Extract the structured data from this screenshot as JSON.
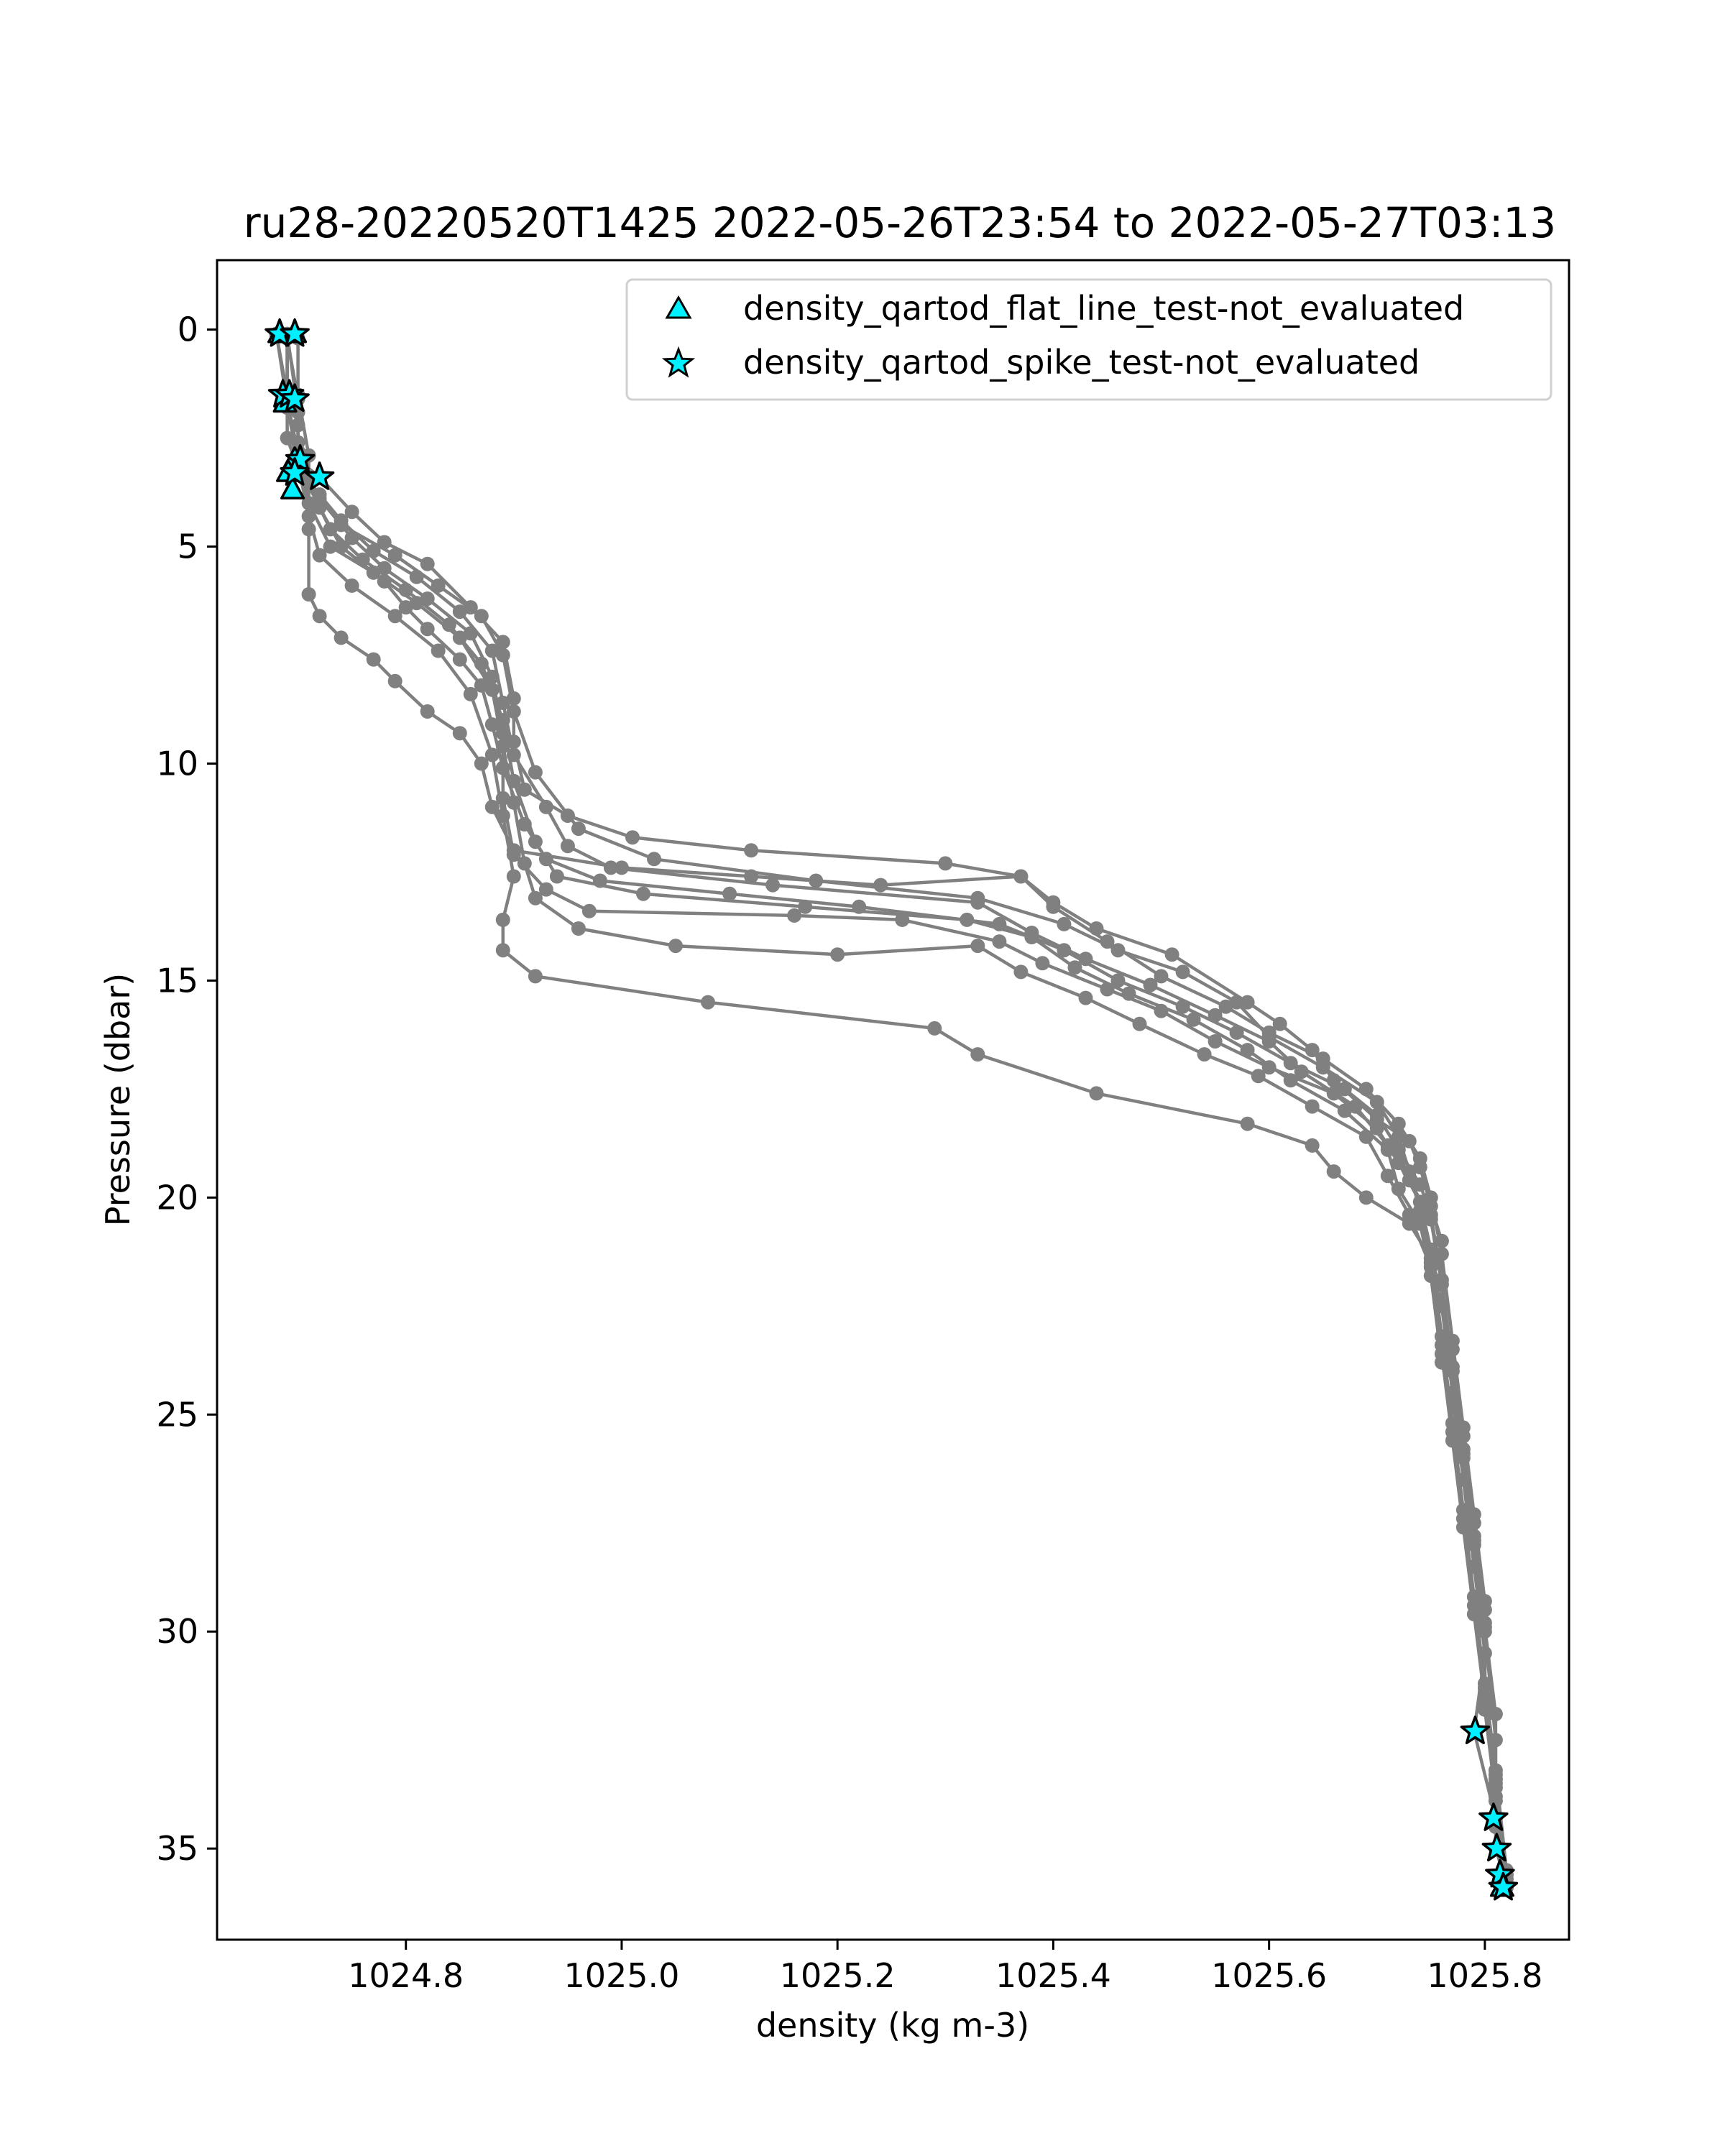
{
  "chart_data": {
    "type": "line",
    "title": "ru28-20220520T1425 2022-05-26T23:54 to 2022-05-27T03:13",
    "xlabel": "density (kg m-3)",
    "ylabel": "Pressure (dbar)",
    "xlim": [
      1024.625,
      1025.878
    ],
    "ylim": [
      37.1,
      -1.6
    ],
    "y_inverted": true,
    "grid": false,
    "legend_position": "top-right",
    "xticks": [
      1024.8,
      1025.0,
      1025.2,
      1025.4,
      1025.6,
      1025.8
    ],
    "xtick_labels": [
      "1024.8",
      "1025.0",
      "1025.2",
      "1025.4",
      "1025.6",
      "1025.8"
    ],
    "yticks": [
      0,
      5,
      10,
      15,
      20,
      25,
      30,
      35
    ],
    "ytick_labels": [
      "0",
      "5",
      "10",
      "15",
      "20",
      "25",
      "30",
      "35"
    ],
    "colors": {
      "profile_line": "#808080",
      "flag_fill": "#00f0ff",
      "flag_edge": "#000000"
    },
    "profiles": [
      [
        [
          1024.69,
          0.1
        ],
        [
          1024.69,
          1.4
        ],
        [
          1024.7,
          2.2
        ],
        [
          1024.7,
          3.0
        ],
        [
          1024.72,
          3.4
        ],
        [
          1024.75,
          4.2
        ],
        [
          1024.78,
          4.9
        ],
        [
          1024.82,
          5.4
        ],
        [
          1024.86,
          6.4
        ],
        [
          1024.89,
          7.2
        ],
        [
          1024.9,
          8.5
        ],
        [
          1024.9,
          9.5
        ],
        [
          1024.91,
          10.6
        ],
        [
          1024.95,
          11.2
        ],
        [
          1025.01,
          11.7
        ],
        [
          1025.12,
          12.0
        ],
        [
          1025.3,
          12.3
        ],
        [
          1025.37,
          12.6
        ],
        [
          1025.4,
          13.2
        ],
        [
          1025.44,
          13.8
        ],
        [
          1025.51,
          14.4
        ],
        [
          1025.58,
          15.5
        ],
        [
          1025.61,
          16.0
        ],
        [
          1025.64,
          16.6
        ],
        [
          1025.66,
          17.3
        ],
        [
          1025.7,
          18.2
        ],
        [
          1025.73,
          18.7
        ],
        [
          1025.74,
          19.3
        ],
        [
          1025.75,
          20.2
        ],
        [
          1025.76,
          21.0
        ],
        [
          1025.76,
          22.5
        ],
        [
          1025.77,
          24.5
        ],
        [
          1025.78,
          26.5
        ],
        [
          1025.79,
          28.5
        ],
        [
          1025.8,
          30.5
        ],
        [
          1025.79,
          32.3
        ],
        [
          1025.81,
          34.3
        ],
        [
          1025.81,
          35.0
        ],
        [
          1025.82,
          35.8
        ]
      ],
      [
        [
          1024.68,
          0.1
        ],
        [
          1024.69,
          1.5
        ],
        [
          1024.69,
          2.5
        ],
        [
          1024.7,
          3.2
        ],
        [
          1024.72,
          3.8
        ],
        [
          1024.74,
          4.5
        ],
        [
          1024.79,
          5.2
        ],
        [
          1024.83,
          5.9
        ],
        [
          1024.87,
          6.6
        ],
        [
          1024.89,
          7.5
        ],
        [
          1024.9,
          8.8
        ],
        [
          1024.92,
          10.2
        ],
        [
          1024.96,
          11.5
        ],
        [
          1025.03,
          12.2
        ],
        [
          1025.18,
          12.7
        ],
        [
          1025.33,
          13.1
        ],
        [
          1025.41,
          13.7
        ],
        [
          1025.46,
          14.3
        ],
        [
          1025.52,
          14.8
        ],
        [
          1025.57,
          15.5
        ],
        [
          1025.6,
          16.3
        ],
        [
          1025.65,
          17.0
        ],
        [
          1025.7,
          17.8
        ],
        [
          1025.72,
          18.6
        ],
        [
          1025.73,
          19.4
        ],
        [
          1025.74,
          20.3
        ],
        [
          1025.75,
          21.5
        ],
        [
          1025.77,
          23.5
        ],
        [
          1025.78,
          25.5
        ],
        [
          1025.79,
          27.5
        ],
        [
          1025.8,
          29.5
        ],
        [
          1025.8,
          31.5
        ],
        [
          1025.81,
          33.5
        ],
        [
          1025.82,
          35.6
        ]
      ],
      [
        [
          1024.69,
          0.2
        ],
        [
          1024.7,
          1.6
        ],
        [
          1024.7,
          2.6
        ],
        [
          1024.71,
          3.5
        ],
        [
          1024.74,
          4.4
        ],
        [
          1024.77,
          5.1
        ],
        [
          1024.81,
          5.7
        ],
        [
          1024.85,
          6.5
        ],
        [
          1024.88,
          7.4
        ],
        [
          1024.89,
          8.6
        ],
        [
          1024.9,
          9.8
        ],
        [
          1024.93,
          11.0
        ],
        [
          1024.95,
          11.9
        ],
        [
          1024.99,
          12.4
        ],
        [
          1025.14,
          12.8
        ],
        [
          1025.33,
          13.2
        ],
        [
          1025.38,
          13.9
        ],
        [
          1025.43,
          14.5
        ],
        [
          1025.49,
          15.1
        ],
        [
          1025.55,
          15.8
        ],
        [
          1025.6,
          16.4
        ],
        [
          1025.63,
          17.1
        ],
        [
          1025.68,
          17.9
        ],
        [
          1025.71,
          18.8
        ],
        [
          1025.73,
          19.6
        ],
        [
          1025.75,
          20.5
        ],
        [
          1025.76,
          22.0
        ],
        [
          1025.77,
          24.0
        ],
        [
          1025.78,
          26.0
        ],
        [
          1025.79,
          28.0
        ],
        [
          1025.8,
          30.0
        ],
        [
          1025.81,
          32.5
        ],
        [
          1025.81,
          34.5
        ],
        [
          1025.82,
          35.9
        ]
      ],
      [
        [
          1024.68,
          0.1
        ],
        [
          1024.69,
          1.7
        ],
        [
          1024.7,
          2.8
        ],
        [
          1024.71,
          3.6
        ],
        [
          1024.73,
          4.6
        ],
        [
          1024.76,
          5.3
        ],
        [
          1024.8,
          6.0
        ],
        [
          1024.84,
          6.8
        ],
        [
          1024.87,
          7.7
        ],
        [
          1024.89,
          9.0
        ],
        [
          1024.9,
          10.4
        ],
        [
          1024.92,
          11.8
        ],
        [
          1024.94,
          12.6
        ],
        [
          1025.02,
          13.0
        ],
        [
          1025.17,
          13.3
        ],
        [
          1025.32,
          13.6
        ],
        [
          1025.38,
          14.0
        ],
        [
          1025.42,
          14.7
        ],
        [
          1025.47,
          15.3
        ],
        [
          1025.53,
          15.9
        ],
        [
          1025.58,
          16.6
        ],
        [
          1025.62,
          17.3
        ],
        [
          1025.67,
          18.0
        ],
        [
          1025.71,
          18.9
        ],
        [
          1025.72,
          19.8
        ],
        [
          1025.74,
          20.6
        ],
        [
          1025.75,
          21.8
        ],
        [
          1025.76,
          23.8
        ],
        [
          1025.78,
          25.8
        ],
        [
          1025.79,
          27.8
        ],
        [
          1025.8,
          29.8
        ],
        [
          1025.8,
          31.8
        ],
        [
          1025.81,
          33.8
        ],
        [
          1025.82,
          35.7
        ]
      ],
      [
        [
          1024.69,
          0.2
        ],
        [
          1024.69,
          1.8
        ],
        [
          1024.7,
          3.0
        ],
        [
          1024.72,
          3.9
        ],
        [
          1024.75,
          4.8
        ],
        [
          1024.78,
          5.5
        ],
        [
          1024.82,
          6.2
        ],
        [
          1024.86,
          7.0
        ],
        [
          1024.88,
          8.0
        ],
        [
          1024.89,
          9.3
        ],
        [
          1024.89,
          10.8
        ],
        [
          1024.9,
          12.1
        ],
        [
          1024.93,
          12.9
        ],
        [
          1024.97,
          13.4
        ],
        [
          1025.16,
          13.5
        ],
        [
          1025.26,
          13.6
        ],
        [
          1025.35,
          14.1
        ],
        [
          1025.39,
          14.6
        ],
        [
          1025.45,
          15.2
        ],
        [
          1025.5,
          15.7
        ],
        [
          1025.55,
          16.4
        ],
        [
          1025.6,
          17.0
        ],
        [
          1025.66,
          17.6
        ],
        [
          1025.7,
          18.4
        ],
        [
          1025.72,
          19.2
        ],
        [
          1025.74,
          20.1
        ],
        [
          1025.75,
          21.2
        ],
        [
          1025.76,
          23.2
        ],
        [
          1025.77,
          25.2
        ],
        [
          1025.78,
          27.2
        ],
        [
          1025.79,
          29.2
        ],
        [
          1025.8,
          31.2
        ],
        [
          1025.81,
          33.2
        ],
        [
          1025.82,
          35.5
        ]
      ],
      [
        [
          1024.68,
          0.1
        ],
        [
          1024.69,
          1.6
        ],
        [
          1024.7,
          2.9
        ],
        [
          1024.71,
          4.0
        ],
        [
          1024.73,
          5.0
        ],
        [
          1024.77,
          5.6
        ],
        [
          1024.81,
          6.3
        ],
        [
          1024.85,
          7.1
        ],
        [
          1024.88,
          8.3
        ],
        [
          1024.89,
          9.6
        ],
        [
          1024.9,
          10.9
        ],
        [
          1024.91,
          12.3
        ],
        [
          1024.92,
          13.1
        ],
        [
          1024.96,
          13.8
        ],
        [
          1025.05,
          14.2
        ],
        [
          1025.2,
          14.4
        ],
        [
          1025.33,
          14.2
        ],
        [
          1025.37,
          14.8
        ],
        [
          1025.43,
          15.4
        ],
        [
          1025.48,
          16.0
        ],
        [
          1025.54,
          16.7
        ],
        [
          1025.59,
          17.2
        ],
        [
          1025.64,
          17.9
        ],
        [
          1025.69,
          18.6
        ],
        [
          1025.71,
          19.5
        ],
        [
          1025.73,
          20.4
        ],
        [
          1025.75,
          21.6
        ],
        [
          1025.76,
          23.6
        ],
        [
          1025.77,
          25.6
        ],
        [
          1025.78,
          27.6
        ],
        [
          1025.79,
          29.6
        ],
        [
          1025.8,
          31.6
        ],
        [
          1025.81,
          33.6
        ],
        [
          1025.82,
          35.8
        ]
      ],
      [
        [
          1024.69,
          0.1
        ],
        [
          1024.7,
          1.9
        ],
        [
          1024.7,
          3.1
        ],
        [
          1024.71,
          4.3
        ],
        [
          1024.72,
          5.2
        ],
        [
          1024.75,
          5.9
        ],
        [
          1024.79,
          6.6
        ],
        [
          1024.83,
          7.4
        ],
        [
          1024.86,
          8.4
        ],
        [
          1024.88,
          9.8
        ],
        [
          1024.89,
          11.2
        ],
        [
          1024.9,
          12.6
        ],
        [
          1024.89,
          13.6
        ],
        [
          1024.89,
          14.3
        ],
        [
          1024.92,
          14.9
        ],
        [
          1025.08,
          15.5
        ],
        [
          1025.29,
          16.1
        ],
        [
          1025.33,
          16.7
        ],
        [
          1025.44,
          17.6
        ],
        [
          1025.58,
          18.3
        ],
        [
          1025.64,
          18.8
        ],
        [
          1025.66,
          19.4
        ],
        [
          1025.69,
          20.0
        ],
        [
          1025.73,
          20.6
        ],
        [
          1025.75,
          21.4
        ],
        [
          1025.76,
          23.4
        ],
        [
          1025.77,
          25.4
        ],
        [
          1025.78,
          27.4
        ],
        [
          1025.79,
          29.4
        ],
        [
          1025.8,
          31.4
        ],
        [
          1025.81,
          33.4
        ],
        [
          1025.82,
          35.9
        ]
      ],
      [
        [
          1024.7,
          0.2
        ],
        [
          1024.7,
          1.5
        ],
        [
          1024.71,
          2.9
        ],
        [
          1024.71,
          4.6
        ],
        [
          1024.71,
          6.1
        ],
        [
          1024.72,
          6.6
        ],
        [
          1024.74,
          7.1
        ],
        [
          1024.77,
          7.6
        ],
        [
          1024.79,
          8.1
        ],
        [
          1024.82,
          8.8
        ],
        [
          1024.85,
          9.3
        ],
        [
          1024.87,
          10.0
        ],
        [
          1024.88,
          11.0
        ],
        [
          1024.9,
          12.0
        ],
        [
          1025.0,
          12.4
        ],
        [
          1025.12,
          12.6
        ],
        [
          1025.24,
          12.8
        ],
        [
          1025.37,
          12.6
        ],
        [
          1025.4,
          13.3
        ],
        [
          1025.45,
          14.1
        ],
        [
          1025.5,
          14.9
        ],
        [
          1025.56,
          15.6
        ],
        [
          1025.6,
          16.2
        ],
        [
          1025.65,
          16.8
        ],
        [
          1025.69,
          17.5
        ],
        [
          1025.72,
          18.3
        ],
        [
          1025.74,
          19.1
        ],
        [
          1025.75,
          20.0
        ],
        [
          1025.76,
          21.3
        ],
        [
          1025.77,
          23.3
        ],
        [
          1025.78,
          25.3
        ],
        [
          1025.79,
          27.3
        ],
        [
          1025.8,
          29.3
        ],
        [
          1025.8,
          31.3
        ],
        [
          1025.81,
          33.3
        ],
        [
          1025.82,
          35.6
        ]
      ],
      [
        [
          1024.69,
          0.1
        ],
        [
          1024.69,
          1.7
        ],
        [
          1024.7,
          3.0
        ],
        [
          1024.72,
          4.1
        ],
        [
          1024.74,
          5.0
        ],
        [
          1024.78,
          5.8
        ],
        [
          1024.8,
          6.4
        ],
        [
          1024.82,
          6.9
        ],
        [
          1024.85,
          7.6
        ],
        [
          1024.87,
          8.2
        ],
        [
          1024.88,
          9.1
        ],
        [
          1024.89,
          10.1
        ],
        [
          1024.91,
          11.4
        ],
        [
          1024.93,
          12.2
        ],
        [
          1024.98,
          12.7
        ],
        [
          1025.1,
          13.0
        ],
        [
          1025.22,
          13.3
        ],
        [
          1025.35,
          13.7
        ],
        [
          1025.41,
          14.3
        ],
        [
          1025.46,
          15.0
        ],
        [
          1025.52,
          15.6
        ],
        [
          1025.57,
          16.2
        ],
        [
          1025.62,
          16.9
        ],
        [
          1025.67,
          17.5
        ],
        [
          1025.7,
          18.1
        ],
        [
          1025.72,
          18.9
        ],
        [
          1025.74,
          19.7
        ],
        [
          1025.75,
          20.4
        ],
        [
          1025.76,
          21.9
        ],
        [
          1025.77,
          23.9
        ],
        [
          1025.78,
          25.9
        ],
        [
          1025.79,
          27.9
        ],
        [
          1025.8,
          29.9
        ],
        [
          1025.81,
          31.9
        ],
        [
          1025.81,
          33.9
        ],
        [
          1025.82,
          35.7
        ]
      ]
    ],
    "flags": [
      {
        "name": "density_qartod_flat_line_test-not_evaluated",
        "marker": "triangle",
        "points": [
          [
            1024.683,
            0.1
          ],
          [
            1024.697,
            0.1
          ],
          [
            1024.688,
            1.7
          ],
          [
            1024.697,
            3.0
          ],
          [
            1024.691,
            3.3
          ],
          [
            1024.695,
            3.7
          ],
          [
            1025.816,
            35.9
          ]
        ]
      },
      {
        "name": "density_qartod_spike_test-not_evaluated",
        "marker": "star",
        "points": [
          [
            1024.683,
            0.1
          ],
          [
            1024.697,
            0.1
          ],
          [
            1024.686,
            1.5
          ],
          [
            1024.692,
            1.5
          ],
          [
            1024.697,
            1.6
          ],
          [
            1024.702,
            3.0
          ],
          [
            1024.697,
            3.3
          ],
          [
            1024.72,
            3.4
          ],
          [
            1025.791,
            32.3
          ],
          [
            1025.808,
            34.3
          ],
          [
            1025.811,
            35.0
          ],
          [
            1025.814,
            35.6
          ],
          [
            1025.817,
            35.9
          ]
        ]
      }
    ]
  }
}
